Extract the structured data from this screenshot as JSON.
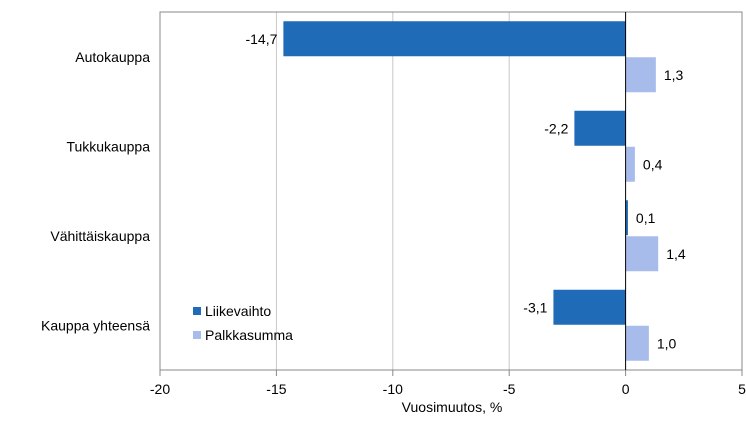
{
  "chart_data": {
    "type": "bar",
    "orientation": "horizontal",
    "categories": [
      "Autokauppa",
      "Tukkukauppa",
      "Vähittäiskauppa",
      "Kauppa yhteensä"
    ],
    "series": [
      {
        "name": "Liikevaihto",
        "color": "#1f6bb8",
        "values": [
          -14.7,
          -2.2,
          0.1,
          -3.1
        ],
        "labels": [
          "-14,7",
          "-2,2",
          "0,1",
          "-3,1"
        ]
      },
      {
        "name": "Palkkasumma",
        "color": "#a8bcec",
        "values": [
          1.3,
          0.4,
          1.4,
          1.0
        ],
        "labels": [
          "1,3",
          "0,4",
          "1,4",
          "1,0"
        ]
      }
    ],
    "xlabel": "Vuosimuutos, %",
    "xlim": [
      -20,
      5
    ],
    "xticks": [
      -20,
      -15,
      -10,
      -5,
      0,
      5
    ],
    "grid": "vertical",
    "legend_position": "bottom-left"
  }
}
